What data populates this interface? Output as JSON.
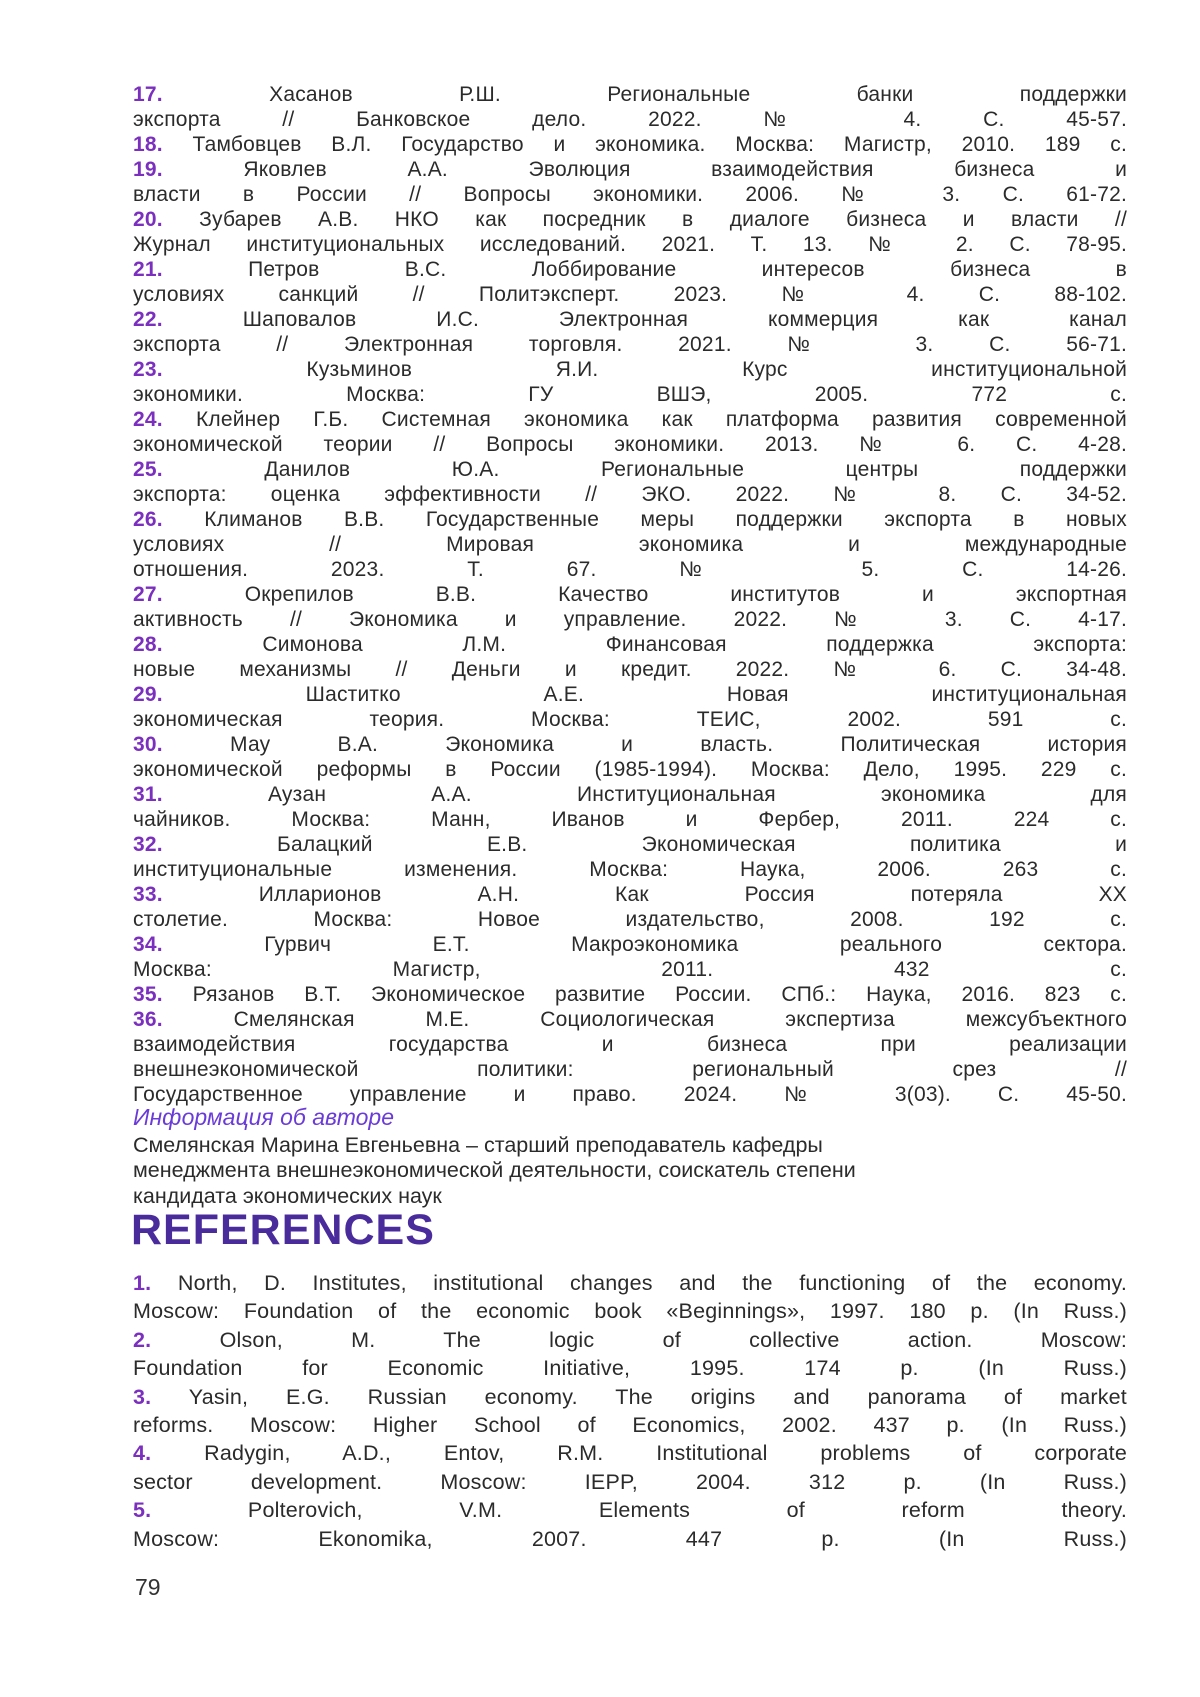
{
  "page": {
    "number": "79"
  },
  "colors": {
    "ref_number": "#7b2fbe",
    "body_text": "#2b2b2b",
    "author_heading": "#6a3bd8",
    "references_heading": "#4a2b9b"
  },
  "references_ru": [
    {
      "num": "17.",
      "lines": [
        "Хасанов Р.Ш. Региональные банки поддержки",
        "экспорта // Банковское дело. 2022. № 4. С. 45-57."
      ]
    },
    {
      "num": "18.",
      "lines": [
        "Тамбовцев В.Л. Государство и экономика. Москва: Магистр, 2010. 189 с."
      ]
    },
    {
      "num": "19.",
      "lines": [
        "Яковлев А.А. Эволюция взаимодействия бизнеса и",
        "власти в России // Вопросы экономики. 2006. № 3. С. 61-72."
      ]
    },
    {
      "num": "20.",
      "lines": [
        "Зубарев А.В. НКО как посредник в диалоге бизнеса и власти //",
        "Журнал институциональных исследований. 2021. Т. 13. № 2. С. 78-95."
      ]
    },
    {
      "num": "21.",
      "lines": [
        "Петров В.С. Лоббирование интересов бизнеса в",
        "условиях санкций // Политэксперт. 2023. № 4. С. 88-102."
      ]
    },
    {
      "num": "22.",
      "lines": [
        "Шаповалов И.С. Электронная коммерция как канал",
        "экспорта // Электронная торговля. 2021. № 3. С. 56-71."
      ]
    },
    {
      "num": "23.",
      "lines": [
        "Кузьминов Я.И. Курс институциональной",
        "экономики. Москва: ГУ ВШЭ, 2005. 772 с."
      ]
    },
    {
      "num": "24.",
      "lines": [
        "Клейнер Г.Б. Системная экономика как платформа развития современной",
        "экономической теории // Вопросы экономики. 2013. № 6. С. 4-28."
      ]
    },
    {
      "num": "25.",
      "lines": [
        "Данилов Ю.А. Региональные центры поддержки",
        "экспорта: оценка эффективности // ЭКО. 2022. № 8. С. 34-52."
      ]
    },
    {
      "num": "26.",
      "lines": [
        "Климанов В.В. Государственные меры поддержки экспорта в новых",
        "условиях // Мировая экономика и международные",
        "отношения. 2023. Т. 67. № 5. С. 14-26."
      ]
    },
    {
      "num": "27.",
      "lines": [
        "Окрепилов В.В. Качество институтов и экспортная",
        "активность // Экономика и управление. 2022. № 3. С. 4-17."
      ]
    },
    {
      "num": "28.",
      "lines": [
        "Симонова Л.М. Финансовая поддержка экспорта:",
        "новые механизмы // Деньги и кредит. 2022. № 6. С. 34-48."
      ]
    },
    {
      "num": "29.",
      "lines": [
        "Шаститко А.Е. Новая институциональная",
        "экономическая теория. Москва: ТЕИС, 2002. 591 с."
      ]
    },
    {
      "num": "30.",
      "lines": [
        "Мау В.А. Экономика и власть. Политическая история",
        "экономической реформы в России (1985-1994). Москва: Дело, 1995. 229 с."
      ]
    },
    {
      "num": "31.",
      "lines": [
        "Аузан А.А. Институциональная экономика для",
        "чайников. Москва: Манн, Иванов и Фербер, 2011. 224 с."
      ]
    },
    {
      "num": "32.",
      "lines": [
        "Балацкий Е.В. Экономическая политика и",
        "институциональные изменения. Москва: Наука, 2006. 263 с."
      ]
    },
    {
      "num": "33.",
      "lines": [
        "Илларионов А.Н. Как Россия потеряла XX",
        "столетие. Москва: Новое издательство, 2008. 192 с."
      ]
    },
    {
      "num": "34.",
      "lines": [
        "Гурвич Е.Т. Макроэкономика реального сектора.",
        "Москва: Магистр, 2011. 432 с."
      ]
    },
    {
      "num": "35.",
      "lines": [
        "Рязанов В.Т. Экономическое развитие России. СПб.: Наука, 2016. 823 с."
      ]
    },
    {
      "num": "36.",
      "lines": [
        "Смелянская М.Е. Социологическая экспертиза межсубъектного",
        "взаимодействия государства и бизнеса при реализации",
        "внешнеэкономической политики: региональный срез //",
        "Государственное управление и право. 2024. № 3(03). С. 45-50."
      ]
    }
  ],
  "author_info": {
    "heading": "Информация об авторе",
    "lines": [
      "Смелянская Марина Евгеньевна – старший преподаватель кафедры",
      "менеджмента внешнеэкономической деятельности, соискатель степени",
      "кандидата экономических наук"
    ]
  },
  "references_heading": "REFERENCES",
  "references_en": [
    {
      "num": "1.",
      "lines": [
        "North, D. Institutes, institutional changes and the functioning of the economy.",
        "Moscow: Foundation of the economic book «Beginnings», 1997. 180 p. (In Russ.)"
      ]
    },
    {
      "num": "2.",
      "lines": [
        "Olson, M. The logic of collective action. Moscow:",
        "Foundation for Economic Initiative, 1995. 174 p. (In Russ.)"
      ]
    },
    {
      "num": "3.",
      "lines": [
        "Yasin, E.G. Russian economy. The origins and panorama of market",
        "reforms. Moscow: Higher School of Economics, 2002. 437 p. (In Russ.)"
      ]
    },
    {
      "num": "4.",
      "lines": [
        "Radygin, A.D., Entov, R.M. Institutional problems of corporate",
        "sector development. Moscow: IEPP, 2004. 312 p. (In Russ.)"
      ]
    },
    {
      "num": "5.",
      "lines": [
        "Polterovich, V.M. Elements of reform theory.",
        "Moscow: Ekonomika, 2007. 447 p. (In Russ.)"
      ]
    }
  ]
}
